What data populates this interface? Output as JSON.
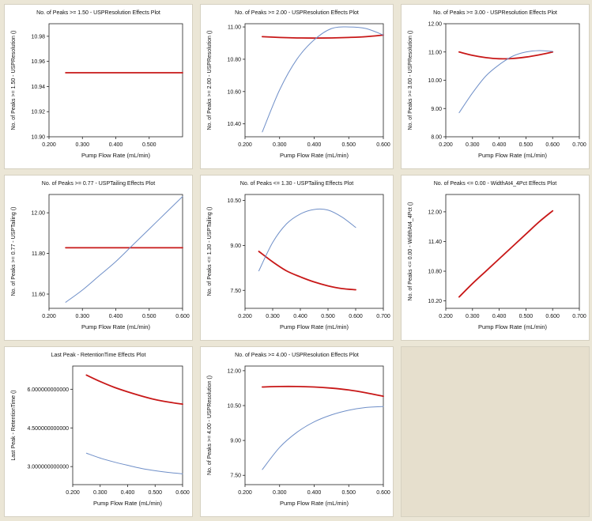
{
  "colors": {
    "red": "#c81818",
    "blue": "#6f8fc8",
    "axis": "#222222",
    "empty": "#e6dfcd"
  },
  "chart_data": [
    {
      "type": "line",
      "title": "No. of Peaks >= 1.50 - USPResolution Effects Plot",
      "xlabel": "Pump Flow Rate (mL/min)",
      "ylabel": "No. of Peaks >= 1.50 - USPResolution ()",
      "x_ticks": [
        0.2,
        0.3,
        0.4,
        0.5
      ],
      "x_tick_labels": [
        "0.200",
        "0.300",
        "0.400",
        "0.500"
      ],
      "y_ticks": [
        10.9,
        10.92,
        10.94,
        10.96,
        10.98
      ],
      "y_tick_labels": [
        "10.90",
        "10.92",
        "10.94",
        "10.96",
        "10.98"
      ],
      "xlim": [
        0.2,
        0.6
      ],
      "ylim": [
        10.9,
        10.99
      ],
      "series": [
        {
          "name": "red",
          "color": "red",
          "x": [
            0.25,
            0.6
          ],
          "y": [
            10.951,
            10.951
          ]
        }
      ]
    },
    {
      "type": "line",
      "title": "No. of Peaks >= 2.00 - USPResolution Effects Plot",
      "xlabel": "Pump Flow Rate (mL/min)",
      "ylabel": "No. of Peaks >= 2.00 - USPResolution ()",
      "x_ticks": [
        0.2,
        0.3,
        0.4,
        0.5,
        0.6
      ],
      "x_tick_labels": [
        "0.200",
        "0.300",
        "0.400",
        "0.500",
        "0.600"
      ],
      "y_ticks": [
        10.4,
        10.6,
        10.8,
        11.0
      ],
      "y_tick_labels": [
        "10.40",
        "10.60",
        "10.80",
        "11.00"
      ],
      "xlim": [
        0.2,
        0.6
      ],
      "ylim": [
        10.32,
        11.02
      ],
      "series": [
        {
          "name": "red",
          "color": "red",
          "x": [
            0.25,
            0.3,
            0.35,
            0.4,
            0.45,
            0.5,
            0.55,
            0.6
          ],
          "y": [
            10.94,
            10.935,
            10.932,
            10.931,
            10.932,
            10.935,
            10.94,
            10.95
          ]
        },
        {
          "name": "blue",
          "color": "blue",
          "x": [
            0.25,
            0.3,
            0.35,
            0.4,
            0.45,
            0.5,
            0.55,
            0.6
          ],
          "y": [
            10.35,
            10.61,
            10.8,
            10.92,
            10.99,
            11.0,
            10.99,
            10.95
          ]
        }
      ]
    },
    {
      "type": "line",
      "title": "No. of Peaks >= 3.00 - USPResolution Effects Plot",
      "xlabel": "Pump Flow Rate (mL/min)",
      "ylabel": "No. of Peaks >= 3.00 - USPResolution ()",
      "x_ticks": [
        0.2,
        0.3,
        0.4,
        0.5,
        0.6,
        0.7
      ],
      "x_tick_labels": [
        "0.200",
        "0.300",
        "0.400",
        "0.500",
        "0.600",
        "0.700"
      ],
      "y_ticks": [
        8.0,
        9.0,
        10.0,
        11.0,
        12.0
      ],
      "y_tick_labels": [
        "8.00",
        "9.00",
        "10.00",
        "11.00",
        "12.00"
      ],
      "xlim": [
        0.2,
        0.7
      ],
      "ylim": [
        8.0,
        12.0
      ],
      "series": [
        {
          "name": "red",
          "color": "red",
          "x": [
            0.25,
            0.3,
            0.35,
            0.4,
            0.45,
            0.5,
            0.55,
            0.6
          ],
          "y": [
            11.0,
            10.88,
            10.8,
            10.76,
            10.77,
            10.82,
            10.9,
            11.0
          ]
        },
        {
          "name": "blue",
          "color": "blue",
          "x": [
            0.25,
            0.3,
            0.35,
            0.4,
            0.45,
            0.5,
            0.55,
            0.6
          ],
          "y": [
            8.85,
            9.55,
            10.15,
            10.55,
            10.85,
            11.0,
            11.05,
            11.02
          ]
        }
      ]
    },
    {
      "type": "line",
      "title": "No. of Peaks >= 0.77 - USPTailing Effects Plot",
      "xlabel": "Pump Flow Rate (mL/min)",
      "ylabel": "No. of Peaks >= 0.77 - USPTailing ()",
      "x_ticks": [
        0.2,
        0.3,
        0.4,
        0.5,
        0.6
      ],
      "x_tick_labels": [
        "0.200",
        "0.300",
        "0.400",
        "0.500",
        "0.600"
      ],
      "y_ticks": [
        11.6,
        11.8,
        12.0
      ],
      "y_tick_labels": [
        "11.60",
        "11.80",
        "12.00"
      ],
      "xlim": [
        0.2,
        0.6
      ],
      "ylim": [
        11.53,
        12.09
      ],
      "series": [
        {
          "name": "red",
          "color": "red",
          "x": [
            0.25,
            0.6
          ],
          "y": [
            11.828,
            11.828
          ]
        },
        {
          "name": "blue",
          "color": "blue",
          "x": [
            0.25,
            0.3,
            0.35,
            0.4,
            0.45,
            0.5,
            0.55,
            0.6
          ],
          "y": [
            11.56,
            11.62,
            11.69,
            11.76,
            11.84,
            11.92,
            12.0,
            12.08
          ]
        }
      ]
    },
    {
      "type": "line",
      "title": "No. of Peaks <= 1.30 - USPTailing Effects Plot",
      "xlabel": "Pump Flow Rate (mL/min)",
      "ylabel": "No. of Peaks <= 1.30 - USPTailing ()",
      "x_ticks": [
        0.2,
        0.3,
        0.4,
        0.5,
        0.6,
        0.7
      ],
      "x_tick_labels": [
        "0.200",
        "0.300",
        "0.400",
        "0.500",
        "0.600",
        "0.700"
      ],
      "y_ticks": [
        7.5,
        9.0,
        10.5
      ],
      "y_tick_labels": [
        "7.50",
        "9.00",
        "10.50"
      ],
      "xlim": [
        0.2,
        0.7
      ],
      "ylim": [
        6.9,
        10.7
      ],
      "series": [
        {
          "name": "red",
          "color": "red",
          "x": [
            0.25,
            0.3,
            0.35,
            0.4,
            0.45,
            0.5,
            0.55,
            0.6
          ],
          "y": [
            8.8,
            8.45,
            8.15,
            7.95,
            7.78,
            7.65,
            7.56,
            7.52
          ]
        },
        {
          "name": "blue",
          "color": "blue",
          "x": [
            0.25,
            0.3,
            0.35,
            0.4,
            0.45,
            0.5,
            0.55,
            0.6
          ],
          "y": [
            8.15,
            9.1,
            9.72,
            10.05,
            10.2,
            10.18,
            9.95,
            9.6
          ]
        }
      ]
    },
    {
      "type": "line",
      "title": "No. of Peaks <= 0.00 - WidthAt4_4Pct Effects Plot",
      "xlabel": "Pump Flow Rate (mL/min)",
      "ylabel": "No. of Peaks <= 0.00 - WidthAt4_4Pct ()",
      "x_ticks": [
        0.2,
        0.3,
        0.4,
        0.5,
        0.6,
        0.7
      ],
      "x_tick_labels": [
        "0.200",
        "0.300",
        "0.400",
        "0.500",
        "0.600",
        "0.700"
      ],
      "y_ticks": [
        10.2,
        10.8,
        11.4,
        12.0
      ],
      "y_tick_labels": [
        "10.20",
        "10.80",
        "11.40",
        "12.00"
      ],
      "xlim": [
        0.2,
        0.7
      ],
      "ylim": [
        10.05,
        12.35
      ],
      "series": [
        {
          "name": "red",
          "color": "red",
          "x": [
            0.25,
            0.3,
            0.35,
            0.4,
            0.45,
            0.5,
            0.55,
            0.6
          ],
          "y": [
            10.28,
            10.55,
            10.8,
            11.05,
            11.3,
            11.55,
            11.8,
            12.02
          ]
        }
      ]
    },
    {
      "type": "line",
      "title": "Last Peak - RetentionTime Effects Plot",
      "xlabel": "Pump Flow Rate (mL/min)",
      "ylabel": "Last Peak - RetentionTime ()",
      "x_ticks": [
        0.2,
        0.3,
        0.4,
        0.5,
        0.6
      ],
      "x_tick_labels": [
        "0.200",
        "0.300",
        "0.400",
        "0.500",
        "0.600"
      ],
      "y_ticks": [
        3.0,
        4.5,
        6.0
      ],
      "y_tick_labels": [
        "3.000000000000",
        "4.500000000000",
        "6.000000000000"
      ],
      "xlim": [
        0.2,
        0.6
      ],
      "ylim": [
        2.3,
        6.9
      ],
      "series": [
        {
          "name": "red",
          "color": "red",
          "x": [
            0.25,
            0.3,
            0.35,
            0.4,
            0.45,
            0.5,
            0.55,
            0.6
          ],
          "y": [
            6.55,
            6.3,
            6.08,
            5.9,
            5.74,
            5.6,
            5.5,
            5.42
          ]
        },
        {
          "name": "blue",
          "color": "blue",
          "x": [
            0.25,
            0.3,
            0.35,
            0.4,
            0.45,
            0.5,
            0.55,
            0.6
          ],
          "y": [
            3.52,
            3.33,
            3.18,
            3.05,
            2.93,
            2.84,
            2.77,
            2.72
          ]
        }
      ]
    },
    {
      "type": "line",
      "title": "No. of Peaks >= 4.00 - USPResolution Effects Plot",
      "xlabel": "Pump Flow Rate (mL/min)",
      "ylabel": "No. of Peaks >= 4.00 - USPResolution ()",
      "x_ticks": [
        0.2,
        0.3,
        0.4,
        0.5,
        0.6
      ],
      "x_tick_labels": [
        "0.200",
        "0.300",
        "0.400",
        "0.500",
        "0.600"
      ],
      "y_ticks": [
        7.5,
        9.0,
        10.5,
        12.0
      ],
      "y_tick_labels": [
        "7.50",
        "9.00",
        "10.50",
        "12.00"
      ],
      "xlim": [
        0.2,
        0.6
      ],
      "ylim": [
        7.1,
        12.2
      ],
      "series": [
        {
          "name": "red",
          "color": "red",
          "x": [
            0.25,
            0.3,
            0.35,
            0.4,
            0.45,
            0.5,
            0.55,
            0.6
          ],
          "y": [
            11.3,
            11.32,
            11.32,
            11.3,
            11.25,
            11.17,
            11.05,
            10.9
          ]
        },
        {
          "name": "blue",
          "color": "blue",
          "x": [
            0.25,
            0.3,
            0.35,
            0.4,
            0.45,
            0.5,
            0.55,
            0.6
          ],
          "y": [
            7.75,
            8.7,
            9.35,
            9.8,
            10.1,
            10.3,
            10.42,
            10.46
          ]
        }
      ]
    }
  ]
}
